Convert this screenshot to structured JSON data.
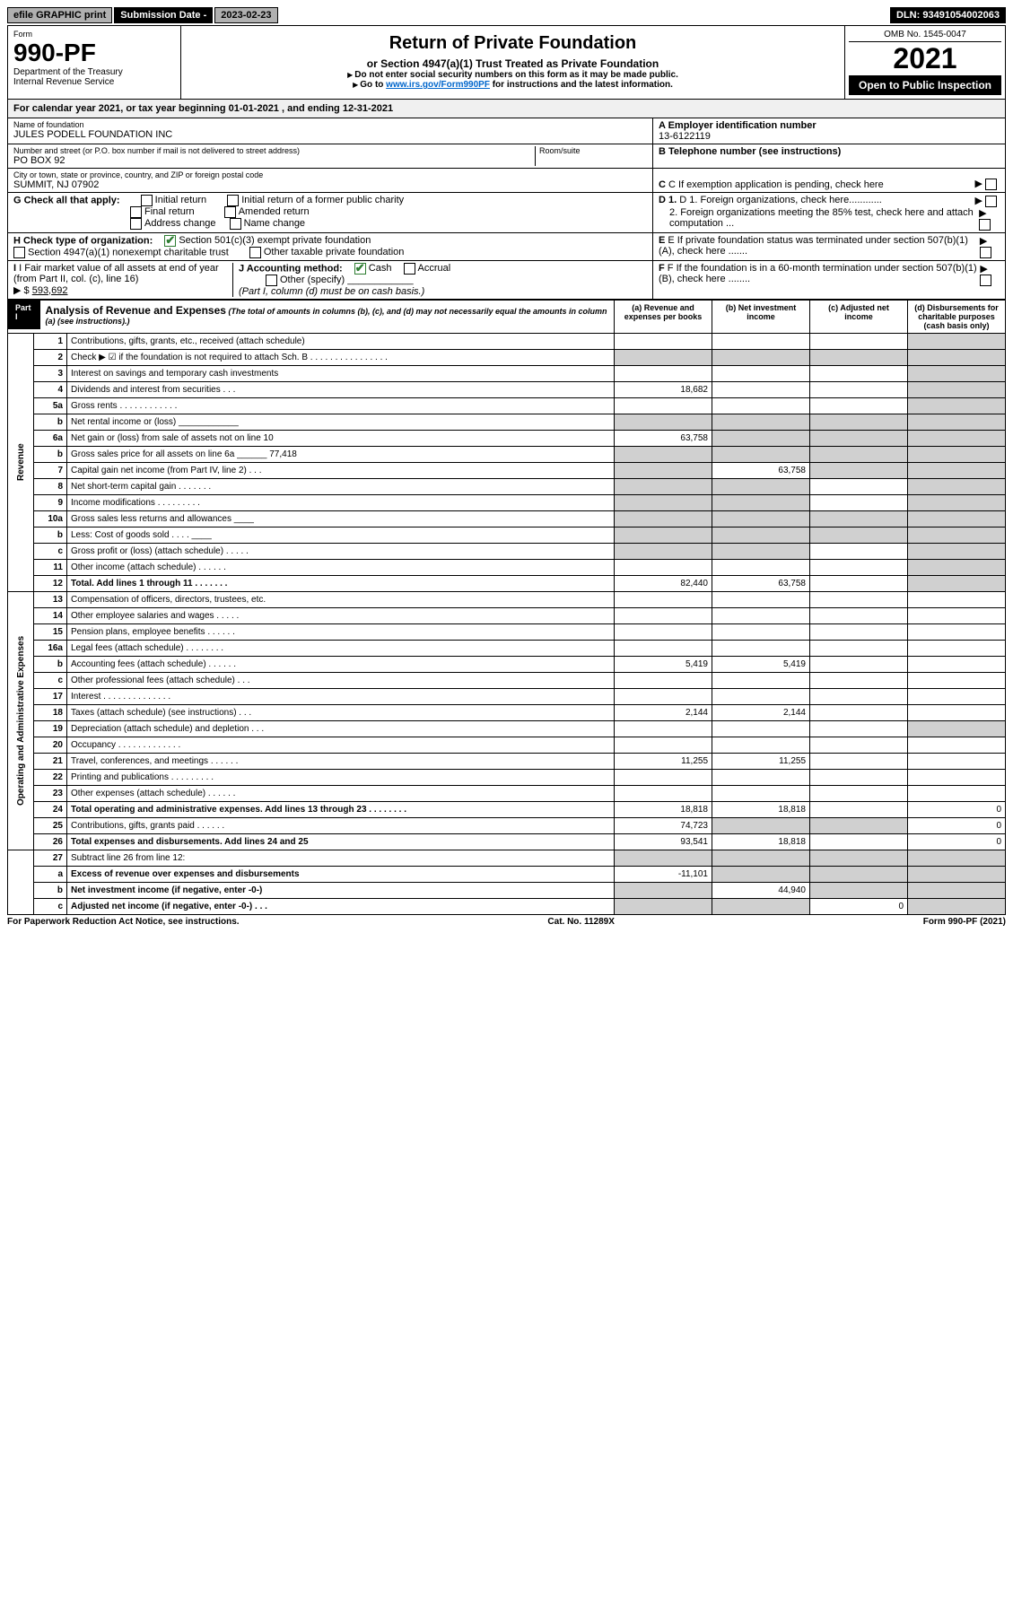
{
  "topbar": {
    "efile": "efile GRAPHIC print",
    "subdate_label": "Submission Date - ",
    "subdate": "2023-02-23",
    "dln_label": "DLN: ",
    "dln": "93491054002063"
  },
  "header": {
    "form_label": "Form",
    "form_no": "990-PF",
    "dept": "Department of the Treasury\nInternal Revenue Service",
    "title": "Return of Private Foundation",
    "subtitle": "or Section 4947(a)(1) Trust Treated as Private Foundation",
    "note1": "Do not enter social security numbers on this form as it may be made public.",
    "note2_pre": "Go to ",
    "note2_link": "www.irs.gov/Form990PF",
    "note2_post": " for instructions and the latest information.",
    "omb": "OMB No. 1545-0047",
    "year": "2021",
    "inspection": "Open to Public Inspection"
  },
  "calyear": {
    "text_pre": "For calendar year 2021, or tax year beginning ",
    "begin": "01-01-2021",
    "text_mid": " , and ending ",
    "end": "12-31-2021"
  },
  "info": {
    "name_label": "Name of foundation",
    "name": "JULES PODELL FOUNDATION INC",
    "ein_label": "A Employer identification number",
    "ein": "13-6122119",
    "addr_label": "Number and street (or P.O. box number if mail is not delivered to street address)",
    "addr": "PO BOX 92",
    "room_label": "Room/suite",
    "room": "",
    "phone_label": "B Telephone number (see instructions)",
    "phone": "",
    "city_label": "City or town, state or province, country, and ZIP or foreign postal code",
    "city": "SUMMIT, NJ  07902",
    "c_label": "C If exemption application is pending, check here",
    "g_label": "G Check all that apply:",
    "g_opts": [
      "Initial return",
      "Initial return of a former public charity",
      "Final return",
      "Amended return",
      "Address change",
      "Name change"
    ],
    "d1": "D 1. Foreign organizations, check here............",
    "d2": "2. Foreign organizations meeting the 85% test, check here and attach computation ...",
    "h_label": "H Check type of organization:",
    "h1": "Section 501(c)(3) exempt private foundation",
    "h2": "Section 4947(a)(1) nonexempt charitable trust",
    "h3": "Other taxable private foundation",
    "e_label": "E  If private foundation status was terminated under section 507(b)(1)(A), check here .......",
    "i_label": "I Fair market value of all assets at end of year (from Part II, col. (c), line 16)",
    "i_val": "593,692",
    "j_label": "J Accounting method:",
    "j_cash": "Cash",
    "j_accrual": "Accrual",
    "j_other": "Other (specify)",
    "j_note": "(Part I, column (d) must be on cash basis.)",
    "f_label": "F  If the foundation is in a 60-month termination under section 507(b)(1)(B), check here ........"
  },
  "part1": {
    "label": "Part I",
    "title": "Analysis of Revenue and Expenses",
    "note": " (The total of amounts in columns (b), (c), and (d) may not necessarily equal the amounts in column (a) (see instructions).)",
    "cols": {
      "a": "(a) Revenue and expenses per books",
      "b": "(b) Net investment income",
      "c": "(c) Adjusted net income",
      "d": "(d) Disbursements for charitable purposes (cash basis only)"
    },
    "sections": {
      "revenue": "Revenue",
      "opex": "Operating and Administrative Expenses"
    },
    "lines": [
      {
        "n": "1",
        "t": "Contributions, gifts, grants, etc., received (attach schedule)",
        "a": "",
        "b": "",
        "c": "",
        "d": "",
        "sd": true
      },
      {
        "n": "2",
        "t": "Check ▶ ☑ if the foundation is not required to attach Sch. B  .  .  .  .  .  .  .  .  .  .  .  .  .  .  .  .",
        "a": "",
        "sa": true,
        "sb": true,
        "sc": true,
        "sd": true
      },
      {
        "n": "3",
        "t": "Interest on savings and temporary cash investments",
        "a": "",
        "b": "",
        "c": "",
        "d": "",
        "sd": true
      },
      {
        "n": "4",
        "t": "Dividends and interest from securities  .  .  .",
        "a": "18,682",
        "b": "",
        "c": "",
        "d": "",
        "sd": true
      },
      {
        "n": "5a",
        "t": "Gross rents  .  .  .  .  .  .  .  .  .  .  .  .",
        "a": "",
        "b": "",
        "c": "",
        "d": "",
        "sd": true
      },
      {
        "n": "b",
        "t": "Net rental income or (loss)  ____________",
        "sa": true,
        "sb": true,
        "sc": true,
        "sd": true
      },
      {
        "n": "6a",
        "t": "Net gain or (loss) from sale of assets not on line 10",
        "a": "63,758",
        "sb": true,
        "sc": true,
        "sd": true
      },
      {
        "n": "b",
        "t": "Gross sales price for all assets on line 6a ______ 77,418",
        "sa": true,
        "sb": true,
        "sc": true,
        "sd": true
      },
      {
        "n": "7",
        "t": "Capital gain net income (from Part IV, line 2)  .  .  .",
        "sa": true,
        "b": "63,758",
        "sc": true,
        "sd": true
      },
      {
        "n": "8",
        "t": "Net short-term capital gain  .  .  .  .  .  .  .",
        "sa": true,
        "sb": true,
        "c": "",
        "sd": true
      },
      {
        "n": "9",
        "t": "Income modifications  .  .  .  .  .  .  .  .  .",
        "sa": true,
        "sb": true,
        "c": "",
        "sd": true
      },
      {
        "n": "10a",
        "t": "Gross sales less returns and allowances  ____",
        "sa": true,
        "sb": true,
        "sc": true,
        "sd": true
      },
      {
        "n": "b",
        "t": "Less: Cost of goods sold  .  .  .  .  ____",
        "sa": true,
        "sb": true,
        "sc": true,
        "sd": true
      },
      {
        "n": "c",
        "t": "Gross profit or (loss) (attach schedule)  .  .  .  .  .",
        "sa": true,
        "sb": true,
        "c": "",
        "sd": true
      },
      {
        "n": "11",
        "t": "Other income (attach schedule)  .  .  .  .  .  .",
        "a": "",
        "b": "",
        "c": "",
        "sd": true
      },
      {
        "n": "12",
        "t": "Total. Add lines 1 through 11  .  .  .  .  .  .  .",
        "a": "82,440",
        "b": "63,758",
        "c": "",
        "sd": true,
        "bold": true
      }
    ],
    "oplines": [
      {
        "n": "13",
        "t": "Compensation of officers, directors, trustees, etc.",
        "a": "",
        "b": "",
        "c": "",
        "d": ""
      },
      {
        "n": "14",
        "t": "Other employee salaries and wages  .  .  .  .  .",
        "a": "",
        "b": "",
        "c": "",
        "d": ""
      },
      {
        "n": "15",
        "t": "Pension plans, employee benefits  .  .  .  .  .  .",
        "a": "",
        "b": "",
        "c": "",
        "d": ""
      },
      {
        "n": "16a",
        "t": "Legal fees (attach schedule)  .  .  .  .  .  .  .  .",
        "a": "",
        "b": "",
        "c": "",
        "d": ""
      },
      {
        "n": "b",
        "t": "Accounting fees (attach schedule)  .  .  .  .  .  .",
        "a": "5,419",
        "b": "5,419",
        "c": "",
        "d": ""
      },
      {
        "n": "c",
        "t": "Other professional fees (attach schedule)  .  .  .",
        "a": "",
        "b": "",
        "c": "",
        "d": ""
      },
      {
        "n": "17",
        "t": "Interest  .  .  .  .  .  .  .  .  .  .  .  .  .  .",
        "a": "",
        "b": "",
        "c": "",
        "d": ""
      },
      {
        "n": "18",
        "t": "Taxes (attach schedule) (see instructions)  .  .  .",
        "a": "2,144",
        "b": "2,144",
        "c": "",
        "d": ""
      },
      {
        "n": "19",
        "t": "Depreciation (attach schedule) and depletion  .  .  .",
        "a": "",
        "b": "",
        "c": "",
        "sd": true
      },
      {
        "n": "20",
        "t": "Occupancy  .  .  .  .  .  .  .  .  .  .  .  .  .",
        "a": "",
        "b": "",
        "c": "",
        "d": ""
      },
      {
        "n": "21",
        "t": "Travel, conferences, and meetings  .  .  .  .  .  .",
        "a": "11,255",
        "b": "11,255",
        "c": "",
        "d": ""
      },
      {
        "n": "22",
        "t": "Printing and publications  .  .  .  .  .  .  .  .  .",
        "a": "",
        "b": "",
        "c": "",
        "d": ""
      },
      {
        "n": "23",
        "t": "Other expenses (attach schedule)  .  .  .  .  .  .",
        "a": "",
        "b": "",
        "c": "",
        "d": ""
      },
      {
        "n": "24",
        "t": "Total operating and administrative expenses. Add lines 13 through 23  .  .  .  .  .  .  .  .",
        "a": "18,818",
        "b": "18,818",
        "c": "",
        "d": "0",
        "bold": true
      },
      {
        "n": "25",
        "t": "Contributions, gifts, grants paid  .  .  .  .  .  .",
        "a": "74,723",
        "sb": true,
        "sc": true,
        "d": "0"
      },
      {
        "n": "26",
        "t": "Total expenses and disbursements. Add lines 24 and 25",
        "a": "93,541",
        "b": "18,818",
        "c": "",
        "d": "0",
        "bold": true
      }
    ],
    "net": [
      {
        "n": "27",
        "t": "Subtract line 26 from line 12:",
        "sa": true,
        "sb": true,
        "sc": true,
        "sd": true
      },
      {
        "n": "a",
        "t": "Excess of revenue over expenses and disbursements",
        "a": "-11,101",
        "sb": true,
        "sc": true,
        "sd": true,
        "bold": true
      },
      {
        "n": "b",
        "t": "Net investment income (if negative, enter -0-)",
        "sa": true,
        "b": "44,940",
        "sc": true,
        "sd": true,
        "bold": true
      },
      {
        "n": "c",
        "t": "Adjusted net income (if negative, enter -0-)  .  .  .",
        "sa": true,
        "sb": true,
        "c": "0",
        "sd": true,
        "bold": true
      }
    ]
  },
  "footer": {
    "left": "For Paperwork Reduction Act Notice, see instructions.",
    "mid": "Cat. No. 11289X",
    "right": "Form 990-PF (2021)"
  }
}
